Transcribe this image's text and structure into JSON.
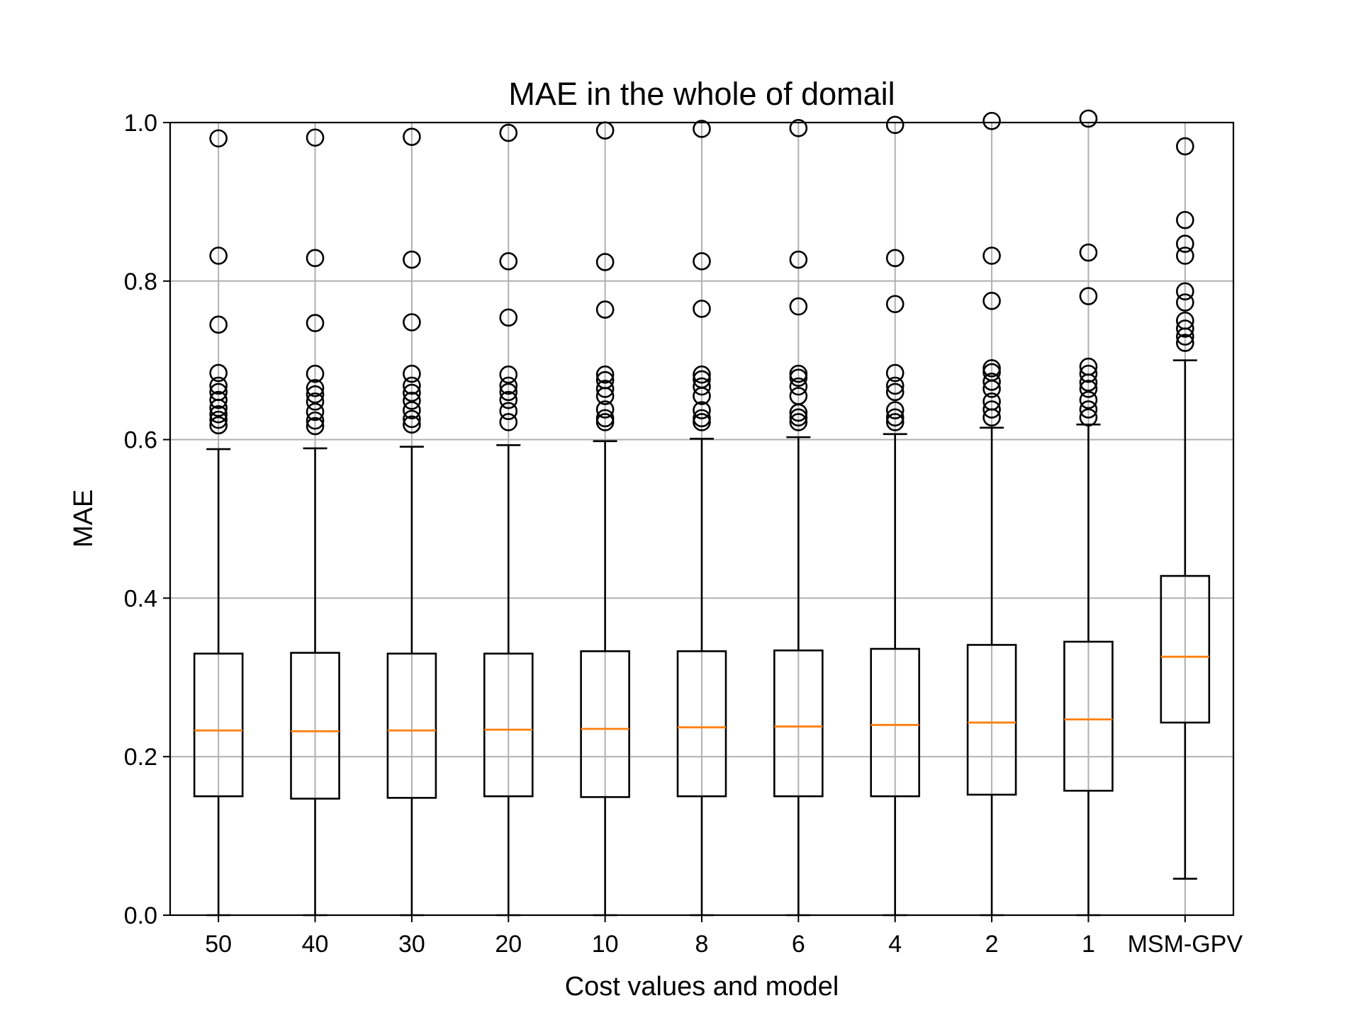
{
  "chart_data": {
    "type": "box",
    "title": "MAE in the whole of domail",
    "xlabel": "Cost values and model",
    "ylabel": "MAE",
    "ylim": [
      0.0,
      1.0
    ],
    "yticks": [
      "0.0",
      "0.2",
      "0.4",
      "0.6",
      "0.8",
      "1.0"
    ],
    "grid": true,
    "categories": [
      "50",
      "40",
      "30",
      "20",
      "10",
      "8",
      "6",
      "4",
      "2",
      "1",
      "MSM-GPV"
    ],
    "boxes": [
      {
        "whislo": 0.0,
        "q1": 0.15,
        "med": 0.233,
        "q3": 0.33,
        "whishi": 0.588,
        "fliers": [
          0.618,
          0.625,
          0.632,
          0.64,
          0.65,
          0.66,
          0.668,
          0.684,
          0.745,
          0.832,
          0.98
        ]
      },
      {
        "whislo": 0.0,
        "q1": 0.147,
        "med": 0.232,
        "q3": 0.331,
        "whishi": 0.589,
        "fliers": [
          0.617,
          0.624,
          0.635,
          0.648,
          0.657,
          0.665,
          0.683,
          0.747,
          0.829,
          0.981
        ]
      },
      {
        "whislo": 0.0,
        "q1": 0.148,
        "med": 0.233,
        "q3": 0.33,
        "whishi": 0.591,
        "fliers": [
          0.619,
          0.626,
          0.637,
          0.649,
          0.659,
          0.668,
          0.683,
          0.748,
          0.827,
          0.982
        ]
      },
      {
        "whislo": 0.0,
        "q1": 0.15,
        "med": 0.234,
        "q3": 0.33,
        "whishi": 0.593,
        "fliers": [
          0.622,
          0.636,
          0.65,
          0.66,
          0.668,
          0.682,
          0.754,
          0.825,
          0.987
        ]
      },
      {
        "whislo": 0.0,
        "q1": 0.149,
        "med": 0.235,
        "q3": 0.333,
        "whishi": 0.598,
        "fliers": [
          0.622,
          0.627,
          0.638,
          0.655,
          0.664,
          0.675,
          0.682,
          0.764,
          0.824,
          0.99
        ]
      },
      {
        "whislo": 0.0,
        "q1": 0.15,
        "med": 0.237,
        "q3": 0.333,
        "whishi": 0.601,
        "fliers": [
          0.622,
          0.627,
          0.637,
          0.655,
          0.667,
          0.676,
          0.682,
          0.765,
          0.825,
          0.992
        ]
      },
      {
        "whislo": 0.0,
        "q1": 0.15,
        "med": 0.238,
        "q3": 0.334,
        "whishi": 0.603,
        "fliers": [
          0.622,
          0.628,
          0.634,
          0.655,
          0.667,
          0.678,
          0.683,
          0.768,
          0.827,
          0.993
        ]
      },
      {
        "whislo": 0.0,
        "q1": 0.15,
        "med": 0.24,
        "q3": 0.336,
        "whishi": 0.607,
        "fliers": [
          0.622,
          0.628,
          0.637,
          0.66,
          0.668,
          0.684,
          0.771,
          0.829,
          0.997
        ]
      },
      {
        "whislo": 0.0,
        "q1": 0.152,
        "med": 0.243,
        "q3": 0.341,
        "whishi": 0.615,
        "fliers": [
          0.628,
          0.638,
          0.648,
          0.664,
          0.673,
          0.685,
          0.69,
          0.775,
          0.832,
          1.002
        ]
      },
      {
        "whislo": 0.0,
        "q1": 0.157,
        "med": 0.247,
        "q3": 0.345,
        "whishi": 0.619,
        "fliers": [
          0.628,
          0.638,
          0.65,
          0.664,
          0.672,
          0.683,
          0.692,
          0.781,
          0.836,
          1.005
        ]
      },
      {
        "whislo": 0.046,
        "q1": 0.243,
        "med": 0.326,
        "q3": 0.428,
        "whishi": 0.7,
        "fliers": [
          0.722,
          0.73,
          0.74,
          0.75,
          0.773,
          0.787,
          0.832,
          0.847,
          0.877,
          0.97
        ]
      }
    ],
    "colors": {
      "box": "#000000",
      "median": "#ff7f0e",
      "grid": "#b0b0b0",
      "flier": "#000000"
    }
  }
}
